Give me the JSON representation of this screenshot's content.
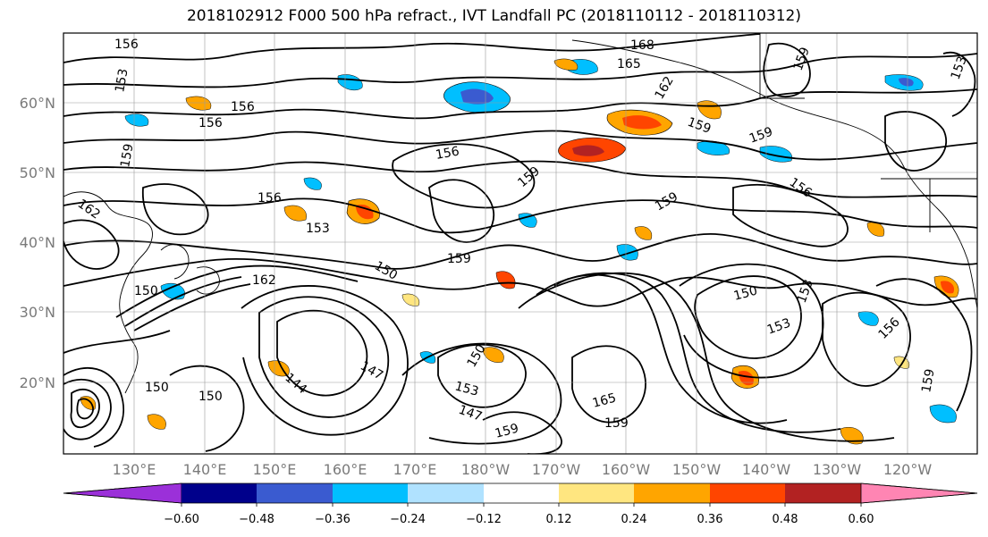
{
  "title": "2018102912 F000 500 hPa refract., IVT Landfall PC (2018110112 - 2018110312)",
  "lat_labels": [
    "60°N",
    "50°N",
    "40°N",
    "30°N",
    "20°N"
  ],
  "lon_labels": [
    "130°E",
    "140°E",
    "150°E",
    "160°E",
    "170°E",
    "180°W",
    "170°W",
    "160°W",
    "150°W",
    "140°W",
    "130°W",
    "120°W"
  ],
  "colorbar": {
    "ticks": [
      "−0.60",
      "−0.48",
      "−0.36",
      "−0.24",
      "−0.12",
      "0.12",
      "0.24",
      "0.36",
      "0.48",
      "0.60"
    ],
    "colors": [
      "#9b30d9",
      "#00008b",
      "#3a5bd0",
      "#00bfff",
      "#b0e2ff",
      "#ffffff",
      "#ffe680",
      "#ffa500",
      "#ff4500",
      "#b22222",
      "#ff85b3"
    ]
  },
  "contour_labels": [
    {
      "text": "156"
    },
    {
      "text": "153"
    },
    {
      "text": "156"
    },
    {
      "text": "156"
    },
    {
      "text": "159"
    },
    {
      "text": "162"
    },
    {
      "text": "153"
    },
    {
      "text": "156"
    },
    {
      "text": "150"
    },
    {
      "text": "159"
    },
    {
      "text": "162"
    },
    {
      "text": "150"
    },
    {
      "text": "153"
    },
    {
      "text": "156"
    },
    {
      "text": "159"
    },
    {
      "text": "168"
    },
    {
      "text": "165"
    },
    {
      "text": "162"
    },
    {
      "text": "159"
    },
    {
      "text": "159"
    },
    {
      "text": "159"
    },
    {
      "text": "156"
    },
    {
      "text": "159"
    },
    {
      "text": "150"
    },
    {
      "text": "153"
    },
    {
      "text": "147"
    },
    {
      "text": "150"
    },
    {
      "text": "153"
    },
    {
      "text": "165"
    },
    {
      "text": "159"
    },
    {
      "text": "159"
    },
    {
      "text": "147"
    },
    {
      "text": "150"
    },
    {
      "text": "144"
    },
    {
      "text": "150"
    },
    {
      "text": "156"
    },
    {
      "text": "153"
    },
    {
      "text": "159"
    }
  ]
}
